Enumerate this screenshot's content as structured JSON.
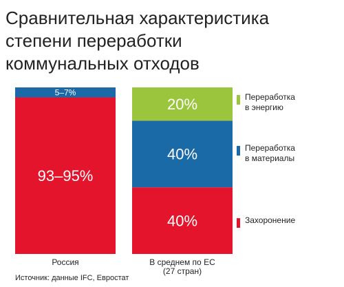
{
  "chart_data": {
    "type": "bar",
    "stacked": true,
    "percent_stacked": true,
    "title_lines": [
      "Сравнительная характеристика",
      "степени переработки",
      "коммунальных отходов"
    ],
    "categories": [
      "Россия",
      "В среднем по ЕС\n(27 стран)"
    ],
    "series": [
      {
        "name": "Захоронение",
        "color": "#e3142b",
        "values": [
          94,
          40
        ],
        "labels": [
          "93–95%",
          "40%"
        ]
      },
      {
        "name": "Переработка\nв материалы",
        "color": "#1a6aa8",
        "values": [
          6,
          40
        ],
        "labels": [
          "5–7%",
          "40%"
        ]
      },
      {
        "name": "Переработка\nв энергию",
        "color": "#9bc53d",
        "values": [
          0,
          20
        ],
        "labels": [
          "",
          "20%"
        ]
      }
    ],
    "ylim": [
      0,
      100
    ],
    "grid": false,
    "legend_position": "right"
  },
  "source": "Источник: данные IFC, Евростат"
}
